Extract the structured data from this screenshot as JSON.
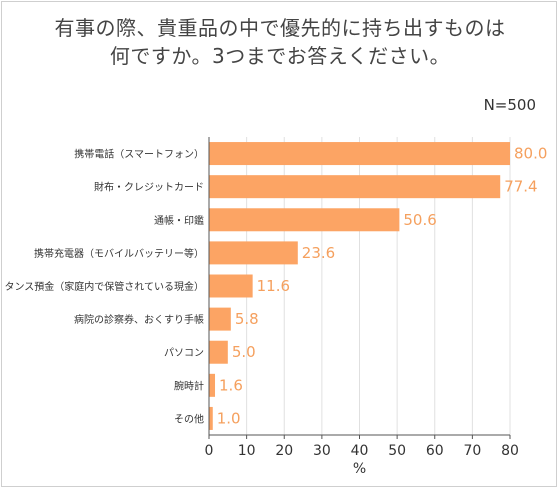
{
  "title_lines": [
    "有事の際、貴重品の中で優先的に持ち出すものは",
    "何ですか。3つまでお答えください。"
  ],
  "n_label": "N=500",
  "colors": {
    "bar": "#fca464",
    "value_text": "#f5a05e",
    "grid": "#e0e0e0",
    "axis": "#555555"
  },
  "chart_data": {
    "type": "bar",
    "orientation": "horizontal",
    "title": "有事の際、貴重品の中で優先的に持ち出すものは何ですか。3つまでお答えください。",
    "categories": [
      "携帯電話（スマートフォン）",
      "財布・クレジットカード",
      "通帳・印鑑",
      "携帯充電器（モバイルバッテリー等）",
      "タンス預金（家庭内で保管されている現金）",
      "病院の診察券、おくすり手帳",
      "パソコン",
      "腕時計",
      "その他"
    ],
    "values": [
      80.0,
      77.4,
      50.6,
      23.6,
      11.6,
      5.8,
      5.0,
      1.6,
      1.0
    ],
    "value_labels": [
      "80.0",
      "77.4",
      "50.6",
      "23.6",
      "11.6",
      "5.8",
      "5.0",
      "1.6",
      "1.0"
    ],
    "xlabel": "%",
    "xlim": [
      0,
      80
    ],
    "xticks": [
      0,
      10,
      20,
      30,
      40,
      50,
      60,
      70,
      80
    ],
    "grid": true
  }
}
